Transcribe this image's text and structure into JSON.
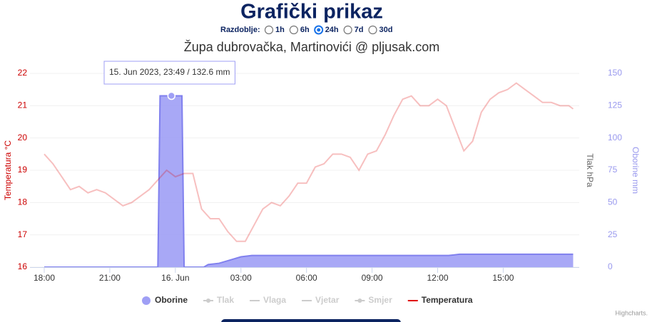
{
  "header": {
    "title": "Grafički prikaz",
    "period_label": "Razdoblje:",
    "period_options": [
      {
        "label": "1h",
        "checked": false
      },
      {
        "label": "6h",
        "checked": false
      },
      {
        "label": "24h",
        "checked": true
      },
      {
        "label": "7d",
        "checked": false
      },
      {
        "label": "30d",
        "checked": false
      }
    ]
  },
  "chart_data": {
    "type": "line",
    "title": "Župa dubrovačka, Martinovići @ pljusak.com",
    "y_label": "Temperatura °C",
    "y2_label": "Oborine mm",
    "y3_label": "Tlak hPa",
    "xlim": [
      0,
      24.25
    ],
    "xticks": [
      {
        "value": 0,
        "label": "18:00"
      },
      {
        "value": 3,
        "label": "21:00"
      },
      {
        "value": 6,
        "label": "16. Jun"
      },
      {
        "value": 9,
        "label": "03:00"
      },
      {
        "value": 12,
        "label": "06:00"
      },
      {
        "value": 15,
        "label": "09:00"
      },
      {
        "value": 18,
        "label": "12:00"
      },
      {
        "value": 21,
        "label": "15:00"
      }
    ],
    "ylim": [
      16,
      22
    ],
    "yticks": [
      16,
      17,
      18,
      19,
      20,
      21,
      22
    ],
    "y2lim": [
      0,
      150
    ],
    "y2ticks": [
      0,
      25,
      50,
      75,
      100,
      125,
      150
    ],
    "grid": true,
    "tooltip": "15. Jun 2023, 23:49 / 132.6 mm",
    "series": [
      {
        "name": "Oborine",
        "type": "area",
        "axis": "y2",
        "color": "#9f9ff5",
        "visible": true,
        "x": [
          0,
          5.2,
          5.3,
          5.82,
          6.3,
          6.4,
          7.3,
          7.5,
          8.0,
          8.5,
          9.0,
          9.5,
          18.5,
          19.0,
          24.2
        ],
        "values": [
          0,
          0,
          132.6,
          132.6,
          132.6,
          0,
          0,
          2,
          3,
          5.5,
          8,
          9,
          9,
          10,
          10
        ]
      },
      {
        "name": "Tlak",
        "type": "line",
        "visible": false
      },
      {
        "name": "Vlaga",
        "type": "line",
        "visible": false
      },
      {
        "name": "Vjetar",
        "type": "line",
        "visible": false
      },
      {
        "name": "Smjer",
        "type": "scatter",
        "visible": false
      },
      {
        "name": "Temperatura",
        "type": "line",
        "axis": "y",
        "color": "#e00000",
        "visible": true,
        "x": [
          0,
          0.4,
          0.8,
          1.2,
          1.6,
          2.0,
          2.4,
          2.8,
          3.2,
          3.6,
          4.0,
          4.4,
          4.8,
          5.2,
          5.6,
          6.0,
          6.4,
          6.8,
          7.2,
          7.6,
          8.0,
          8.4,
          8.8,
          9.2,
          9.6,
          10.0,
          10.4,
          10.8,
          11.2,
          11.6,
          12.0,
          12.4,
          12.8,
          13.2,
          13.6,
          14.0,
          14.4,
          14.8,
          15.2,
          15.6,
          16.0,
          16.4,
          16.8,
          17.2,
          17.6,
          18.0,
          18.4,
          18.8,
          19.2,
          19.6,
          20.0,
          20.4,
          20.8,
          21.2,
          21.6,
          22.0,
          22.4,
          22.8,
          23.2,
          23.6,
          24.0,
          24.2
        ],
        "values": [
          19.5,
          19.2,
          18.8,
          18.4,
          18.5,
          18.3,
          18.4,
          18.3,
          18.1,
          17.9,
          18.0,
          18.2,
          18.4,
          18.7,
          19.0,
          18.8,
          18.9,
          18.9,
          17.8,
          17.5,
          17.5,
          17.1,
          16.8,
          16.8,
          17.3,
          17.8,
          18.0,
          17.9,
          18.2,
          18.6,
          18.6,
          19.1,
          19.2,
          19.5,
          19.5,
          19.4,
          19.0,
          19.5,
          19.6,
          20.1,
          20.7,
          21.2,
          21.3,
          21.0,
          21.0,
          21.2,
          21.0,
          20.3,
          19.6,
          19.9,
          20.8,
          21.2,
          21.4,
          21.5,
          21.7,
          21.5,
          21.3,
          21.1,
          21.1,
          21.0,
          21.0,
          20.9
        ]
      }
    ],
    "credits": "Highcharts."
  }
}
